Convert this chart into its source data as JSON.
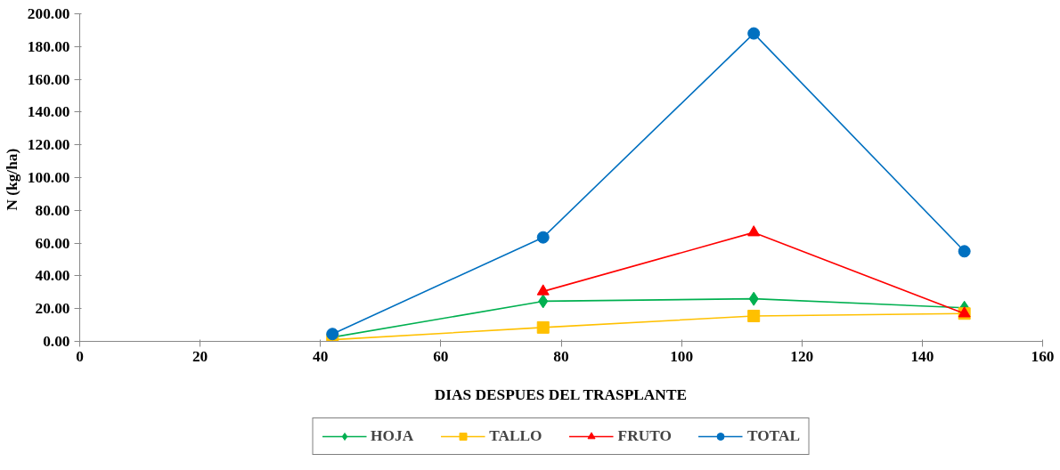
{
  "chart_data": {
    "type": "line",
    "xlabel": "DIAS DESPUES DEL TRASPLANTE",
    "ylabel": "N  (kg/ha)",
    "x": [
      42,
      77,
      112,
      147
    ],
    "xlim": [
      0,
      160
    ],
    "xticks": [
      0,
      20,
      40,
      60,
      80,
      100,
      120,
      140,
      160
    ],
    "ylim": [
      0,
      200
    ],
    "yticks": [
      {
        "value": 0,
        "label": "0.00"
      },
      {
        "value": 20,
        "label": "20.00"
      },
      {
        "value": 40,
        "label": "40.00"
      },
      {
        "value": 60,
        "label": "60.00"
      },
      {
        "value": 80,
        "label": "80.00"
      },
      {
        "value": 100,
        "label": "100.00"
      },
      {
        "value": 120,
        "label": "120.00"
      },
      {
        "value": 140,
        "label": "140.00"
      },
      {
        "value": 160,
        "label": "160.00"
      },
      {
        "value": 180,
        "label": "180.00"
      },
      {
        "value": 200,
        "label": "200.00"
      }
    ],
    "grid": false,
    "legend": "bottom",
    "line_style": "solid",
    "series": [
      {
        "name": "HOJA",
        "color": "#00b050",
        "marker": "diamond",
        "values": [
          2.5,
          24.5,
          26,
          20.5
        ]
      },
      {
        "name": "TALLO",
        "color": "#ffc000",
        "marker": "square",
        "values": [
          1,
          8.5,
          15.5,
          17
        ]
      },
      {
        "name": "FRUTO",
        "color": "#ff0000",
        "marker": "triangle",
        "values": [
          null,
          30.5,
          66.5,
          17
        ]
      },
      {
        "name": "TOTAL",
        "color": "#0070c0",
        "marker": "circle",
        "values": [
          4.5,
          63.5,
          188,
          55
        ]
      }
    ]
  }
}
